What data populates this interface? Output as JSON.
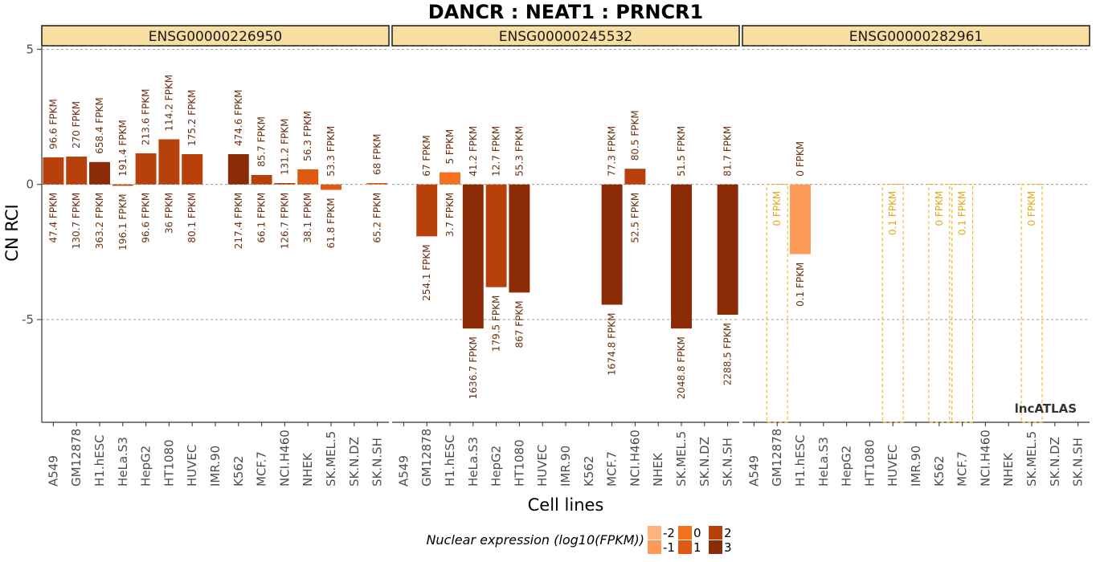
{
  "chart_data": {
    "type": "bar",
    "title": "DANCR : NEAT1 : PRNCR1",
    "xlabel": "Cell lines",
    "ylabel": "CN RCI",
    "ylim": [
      -8.8,
      5.1
    ],
    "yticks": [
      5,
      0,
      -5
    ],
    "grid": "horizontal dashed",
    "watermark": "lncATLAS",
    "legend": {
      "title": "Nuclear expression (log10(FPKM))",
      "position": "bottom",
      "entries": [
        {
          "label": "-2",
          "color": "#fbb47f"
        },
        {
          "label": "-1",
          "color": "#fd9a57"
        },
        {
          "label": "0",
          "color": "#f3721f"
        },
        {
          "label": "1",
          "color": "#de5a10"
        },
        {
          "label": "2",
          "color": "#b8400b"
        },
        {
          "label": "3",
          "color": "#8b2c07"
        }
      ]
    },
    "categories": [
      "A549",
      "GM12878",
      "H1.hESC",
      "HeLa.S3",
      "HepG2",
      "HT1080",
      "HUVEC",
      "IMR.90",
      "K562",
      "MCF.7",
      "NCI.H460",
      "NHEK",
      "SK.MEL.5",
      "SK.N.DZ",
      "SK.N.SH"
    ],
    "panels": [
      {
        "name": "ENSG00000226950",
        "values": [
          1.0,
          1.03,
          0.83,
          -0.05,
          1.15,
          1.67,
          1.12,
          null,
          1.12,
          0.35,
          0.05,
          0.56,
          -0.2,
          null,
          0.05
        ],
        "nuclear_fpkm": [
          "96.6 FPKM",
          "270 FPKM",
          "658.4 FPKM",
          "191.4 FPKM",
          "213.6 FPKM",
          "114.2 FPKM",
          "175.2 FPKM",
          "",
          "474.6 FPKM",
          "85.7 FPKM",
          "131.2 FPKM",
          "56.3 FPKM",
          "53.3 FPKM",
          "",
          "68 FPKM"
        ],
        "cytoplasmic_fpkm": [
          "47.4 FPKM",
          "130.7 FPKM",
          "363.2 FPKM",
          "196.1 FPKM",
          "96.6 FPKM",
          "36 FPKM",
          "80.1 FPKM",
          "",
          "217.4 FPKM",
          "66.1 FPKM",
          "126.7 FPKM",
          "38.1 FPKM",
          "61.8 FPKM",
          "",
          "65.2 FPKM"
        ],
        "colors": [
          "#b8400b",
          "#b8400b",
          "#8b2c07",
          "#b8400b",
          "#b8400b",
          "#b8400b",
          "#b8400b",
          "",
          "#8b2c07",
          "#b8400b",
          "#b8400b",
          "#de5a10",
          "#de5a10",
          "",
          "#de5a10"
        ]
      },
      {
        "name": "ENSG00000245532",
        "values": [
          null,
          -1.92,
          0.45,
          -5.33,
          -3.8,
          -4.0,
          null,
          null,
          null,
          -4.45,
          0.58,
          null,
          -5.33,
          null,
          -4.82
        ],
        "nuclear_fpkm": [
          "",
          "67 FPKM",
          "5 FPKM",
          "41.2 FPKM",
          "12.7 FPKM",
          "55.3 FPKM",
          "",
          "",
          "",
          "77.3 FPKM",
          "80.5 FPKM",
          "",
          "51.5 FPKM",
          "",
          "81.7 FPKM"
        ],
        "cytoplasmic_fpkm": [
          "",
          "254.1 FPKM",
          "3.7 FPKM",
          "1636.7 FPKM",
          "179.5 FPKM",
          "867 FPKM",
          "",
          "",
          "",
          "1674.8 FPKM",
          "52.5 FPKM",
          "",
          "2048.8 FPKM",
          "",
          "2288.5 FPKM"
        ],
        "colors": [
          "",
          "#b8400b",
          "#f3721f",
          "#8b2c07",
          "#b8400b",
          "#8b2c07",
          "",
          "",
          "",
          "#8b2c07",
          "#b8400b",
          "",
          "#8b2c07",
          "",
          "#8b2c07"
        ]
      },
      {
        "name": "ENSG00000282961",
        "values": [
          null,
          "outline",
          -2.58,
          null,
          null,
          null,
          "outline",
          null,
          "outline",
          "outline",
          null,
          null,
          "outline",
          null,
          null
        ],
        "nuclear_fpkm": [
          "",
          "",
          "0 FPKM",
          "",
          "",
          "",
          "",
          "",
          "",
          "",
          "",
          "",
          "",
          "",
          ""
        ],
        "cytoplasmic_fpkm": [
          "",
          "0 FPKM",
          "0.1 FPKM",
          "",
          "",
          "",
          "0.1 FPKM",
          "",
          "0 FPKM",
          "0.1 FPKM",
          "",
          "",
          "0 FPKM",
          "",
          ""
        ],
        "colors": [
          "",
          "#f5b000",
          "#fd9a57",
          "",
          "",
          "",
          "#f5b000",
          "",
          "#f5b000",
          "#f5b000",
          "",
          "",
          "#f5b000",
          "",
          ""
        ]
      }
    ]
  }
}
